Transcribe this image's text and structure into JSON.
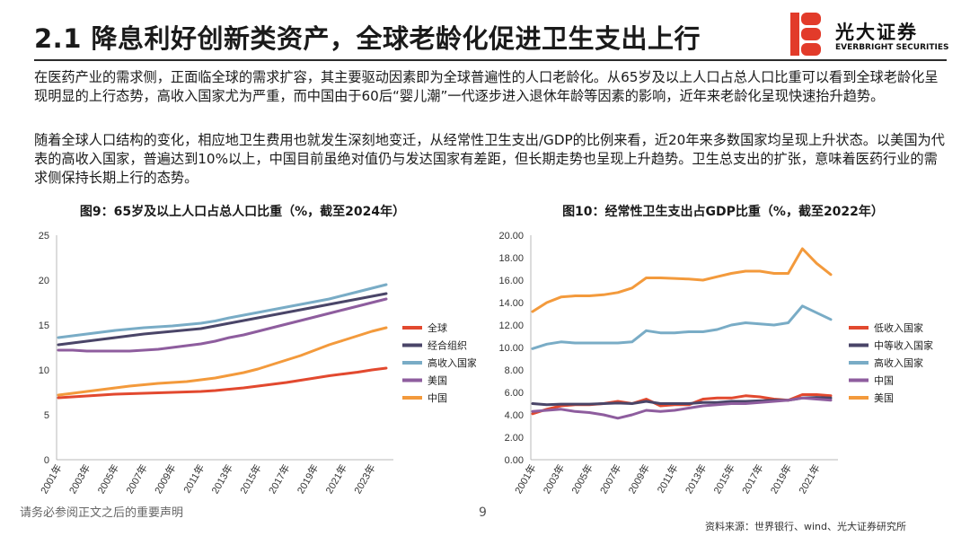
{
  "header": {
    "title": "2.1 降息利好创新类资产，全球老龄化促进卫生支出上行",
    "logo_cn": "光大证券",
    "logo_en": "EVERBRIGHT SECURITIES"
  },
  "body": {
    "para1": "在医药产业的需求侧，正面临全球的需求扩容，其主要驱动因素即为全球普遍性的人口老龄化。从65岁及以上人口占总人口比重可以看到全球老龄化呈现明显的上行态势，高收入国家尤为严重，而中国由于60后“婴儿潮”一代逐步进入退休年龄等因素的影响，近年来老龄化呈现快速抬升趋势。",
    "para2": "随着全球人口结构的变化，相应地卫生费用也就发生深刻地变迁，从经常性卫生支出/GDP的比例来看，近20年来多数国家均呈现上升状态。以美国为代表的高收入国家，普遍达到10%以上，中国目前虽绝对值仍与发达国家有差距，但长期走势也呈现上升趋势。卫生总支出的扩张，意味着医药行业的需求侧保持长期上行的态势。"
  },
  "footer": {
    "disclaimer": "请务必参阅正文之后的重要声明",
    "page": "9",
    "source": "资料来源：世界银行、wind、光大证券研究所"
  },
  "chart_data": [
    {
      "type": "line",
      "title": "图9：65岁及以上人口占总人口比重（%，截至2024年）",
      "x": [
        "2001年",
        "2002年",
        "2003年",
        "2004年",
        "2005年",
        "2006年",
        "2007年",
        "2008年",
        "2009年",
        "2010年",
        "2011年",
        "2012年",
        "2013年",
        "2014年",
        "2015年",
        "2016年",
        "2017年",
        "2018年",
        "2019年",
        "2020年",
        "2021年",
        "2022年",
        "2023年",
        "2024年"
      ],
      "x_tick_labels": [
        "2001年",
        "2003年",
        "2005年",
        "2007年",
        "2009年",
        "2011年",
        "2013年",
        "2015年",
        "2017年",
        "2019年",
        "2021年",
        "2023年"
      ],
      "ylim": [
        0,
        25
      ],
      "yticks": [
        "0",
        "5",
        "10",
        "15",
        "20",
        "25"
      ],
      "series": [
        {
          "name": "全球",
          "color": "#e2492f",
          "values": [
            6.9,
            7.0,
            7.1,
            7.2,
            7.3,
            7.35,
            7.4,
            7.45,
            7.5,
            7.55,
            7.6,
            7.7,
            7.85,
            8.0,
            8.2,
            8.4,
            8.6,
            8.85,
            9.1,
            9.35,
            9.55,
            9.75,
            10.0,
            10.2
          ]
        },
        {
          "name": "经合组织",
          "color": "#4a4568",
          "values": [
            12.8,
            13.0,
            13.2,
            13.4,
            13.6,
            13.8,
            14.0,
            14.15,
            14.3,
            14.45,
            14.6,
            14.9,
            15.2,
            15.5,
            15.8,
            16.1,
            16.4,
            16.7,
            17.0,
            17.3,
            17.6,
            17.9,
            18.2,
            18.5
          ]
        },
        {
          "name": "高收入国家",
          "color": "#79acc6",
          "values": [
            13.6,
            13.8,
            14.0,
            14.2,
            14.4,
            14.55,
            14.7,
            14.8,
            14.9,
            15.05,
            15.2,
            15.45,
            15.8,
            16.1,
            16.4,
            16.7,
            17.0,
            17.3,
            17.6,
            17.9,
            18.3,
            18.7,
            19.1,
            19.5
          ]
        },
        {
          "name": "美国",
          "color": "#8e5d9e",
          "values": [
            12.2,
            12.2,
            12.1,
            12.1,
            12.1,
            12.1,
            12.2,
            12.3,
            12.5,
            12.7,
            12.9,
            13.2,
            13.6,
            13.9,
            14.3,
            14.7,
            15.1,
            15.5,
            15.9,
            16.3,
            16.7,
            17.1,
            17.5,
            17.9
          ]
        },
        {
          "name": "中国",
          "color": "#f39a3c",
          "values": [
            7.2,
            7.4,
            7.6,
            7.8,
            8.0,
            8.2,
            8.35,
            8.5,
            8.6,
            8.7,
            8.9,
            9.1,
            9.4,
            9.7,
            10.1,
            10.6,
            11.1,
            11.6,
            12.2,
            12.8,
            13.3,
            13.8,
            14.3,
            14.7
          ]
        }
      ]
    },
    {
      "type": "line",
      "title": "图10：经常性卫生支出占GDP比重（%，截至2022年）",
      "x": [
        "2001年",
        "2002年",
        "2003年",
        "2004年",
        "2005年",
        "2006年",
        "2007年",
        "2008年",
        "2009年",
        "2010年",
        "2011年",
        "2012年",
        "2013年",
        "2014年",
        "2015年",
        "2016年",
        "2017年",
        "2018年",
        "2019年",
        "2020年",
        "2021年",
        "2022年"
      ],
      "x_tick_labels": [
        "2001年",
        "2003年",
        "2005年",
        "2007年",
        "2009年",
        "2011年",
        "2013年",
        "2015年",
        "2017年",
        "2019年",
        "2021年"
      ],
      "ylim": [
        0,
        20
      ],
      "yticks": [
        "0.00",
        "2.00",
        "4.00",
        "6.00",
        "8.00",
        "10.00",
        "12.00",
        "14.00",
        "16.00",
        "18.00",
        "20.00"
      ],
      "series": [
        {
          "name": "低收入国家",
          "color": "#e2492f",
          "values": [
            4.1,
            4.5,
            4.8,
            4.9,
            4.9,
            5.0,
            5.2,
            5.0,
            5.4,
            4.8,
            4.9,
            4.9,
            5.4,
            5.5,
            5.5,
            5.7,
            5.6,
            5.4,
            5.3,
            5.8,
            5.8,
            5.7
          ]
        },
        {
          "name": "中等收入国家",
          "color": "#4a4568",
          "values": [
            5.0,
            4.9,
            4.95,
            4.95,
            4.95,
            5.0,
            5.05,
            5.0,
            5.2,
            5.0,
            5.0,
            5.0,
            5.1,
            5.1,
            5.2,
            5.2,
            5.25,
            5.3,
            5.3,
            5.5,
            5.55,
            5.5
          ]
        },
        {
          "name": "高收入国家",
          "color": "#79acc6",
          "values": [
            9.9,
            10.3,
            10.5,
            10.4,
            10.4,
            10.4,
            10.4,
            10.5,
            11.5,
            11.3,
            11.3,
            11.4,
            11.4,
            11.6,
            12.0,
            12.2,
            12.1,
            12.0,
            12.2,
            13.7,
            13.1,
            12.5
          ]
        },
        {
          "name": "中国",
          "color": "#8e5d9e",
          "values": [
            4.3,
            4.4,
            4.5,
            4.3,
            4.2,
            4.0,
            3.7,
            4.0,
            4.4,
            4.3,
            4.4,
            4.6,
            4.8,
            4.9,
            5.0,
            5.0,
            5.1,
            5.2,
            5.3,
            5.5,
            5.4,
            5.3
          ]
        },
        {
          "name": "美国",
          "color": "#f39a3c",
          "values": [
            13.2,
            14.0,
            14.5,
            14.6,
            14.6,
            14.7,
            14.9,
            15.3,
            16.2,
            16.2,
            16.15,
            16.1,
            16.0,
            16.3,
            16.6,
            16.8,
            16.8,
            16.6,
            16.6,
            18.8,
            17.5,
            16.5
          ]
        }
      ]
    }
  ]
}
